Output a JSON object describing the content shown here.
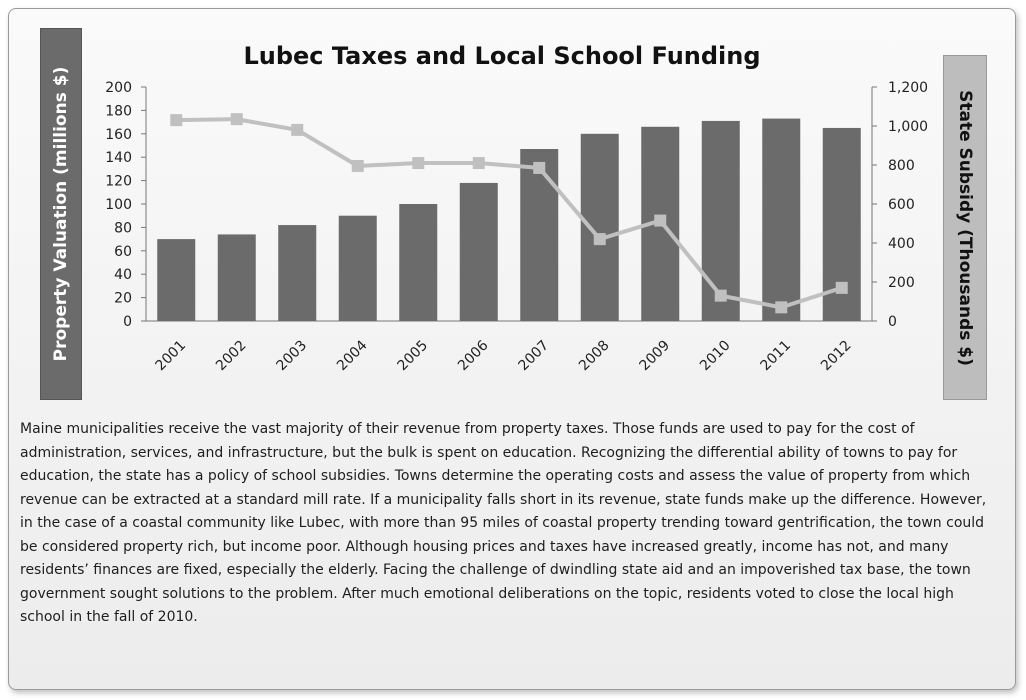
{
  "chart_data": {
    "type": "bar",
    "title": "Lubec Taxes and Local School Funding",
    "categories": [
      "2001",
      "2002",
      "2003",
      "2004",
      "2005",
      "2006",
      "2007",
      "2008",
      "2009",
      "2010",
      "2011",
      "2012"
    ],
    "series": [
      {
        "type": "bar",
        "axis": "left",
        "values": [
          70,
          74,
          82,
          90,
          100,
          118,
          147,
          160,
          166,
          171,
          173,
          165
        ],
        "color": "#6b6b6b"
      },
      {
        "type": "line",
        "axis": "right",
        "values": [
          1030,
          1035,
          980,
          795,
          810,
          810,
          785,
          420,
          515,
          130,
          70,
          170
        ],
        "color": "#c0c0c0"
      }
    ],
    "ylabel": "Property  Valuation (millions $)",
    "y2label": "State Subsidy  (Thousands $)",
    "ylim": [
      0,
      200
    ],
    "yticks": [
      "0",
      "20",
      "40",
      "60",
      "80",
      "100",
      "120",
      "140",
      "160",
      "180",
      "200"
    ],
    "y2lim": [
      0,
      1200
    ],
    "y2ticks": [
      "0",
      "200",
      "400",
      "600",
      "800",
      "1,000",
      "1,200"
    ],
    "grid": false,
    "legend": "none"
  },
  "description": "Maine municipalities receive the vast majority of their revenue from property taxes. Those funds are used to pay for the cost of administration, services, and infrastructure, but the bulk is spent on education. Recognizing  the differential ability of towns to pay for education, the state has a policy of school subsidies. Towns determine the operating costs and assess the value of property from which revenue can be extracted at a standard mill rate. If a municipality falls short in its revenue, state funds make up the difference. However, in the case of a coastal community like Lubec, with more than 95 miles of coastal property trending toward gentrification, the town could be considered property rich, but income poor. Although housing prices and taxes have increased greatly, income has not, and many residents’ finances are fixed, especially the elderly. Facing the  challenge of dwindling state aid and an impoverished tax base, the town government sought solutions to the problem. After much emotional deliberations on the topic, residents voted to close the local high school in the fall of 2010."
}
